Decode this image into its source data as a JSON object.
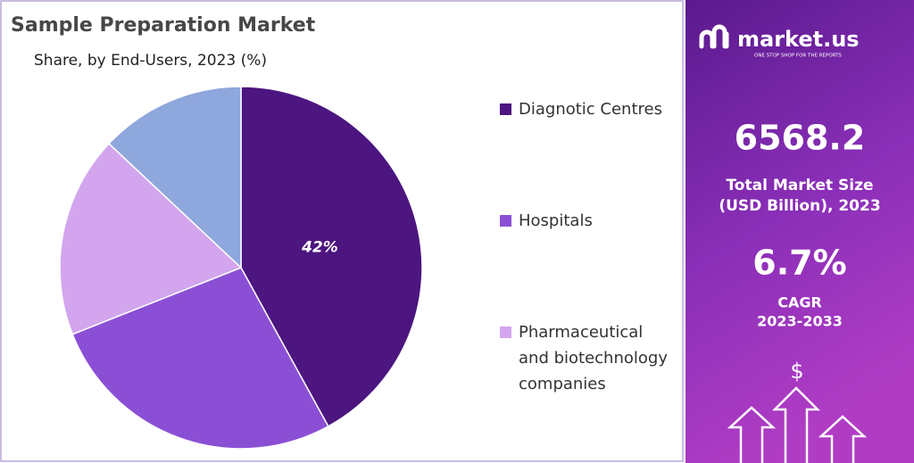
{
  "chart_data": {
    "type": "pie",
    "title": "Sample Preparation Market",
    "subtitle": "Share, by End-Users, 2023 (%)",
    "categories": [
      "Diagnotic Centres",
      "Hospitals",
      "Pharmaceutical and biotechnology companies",
      null
    ],
    "values": [
      42,
      27,
      18,
      13
    ],
    "value_labels": [
      "42%",
      null,
      null,
      null
    ],
    "colors": [
      "#4c157f",
      "#8b4fd5",
      "#d3a5ee",
      "#8ea7dc"
    ]
  },
  "panel": {
    "brand": "market.us",
    "tagline": "ONE STOP SHOP FOR THE REPORTS",
    "market_size": "6568.2",
    "market_size_label_1": "Total Market Size",
    "market_size_label_2": "(USD Billion), 2023",
    "cagr": "6.7%",
    "cagr_label": "CAGR",
    "cagr_period": "2023-2033",
    "icon_symbol": "$"
  }
}
